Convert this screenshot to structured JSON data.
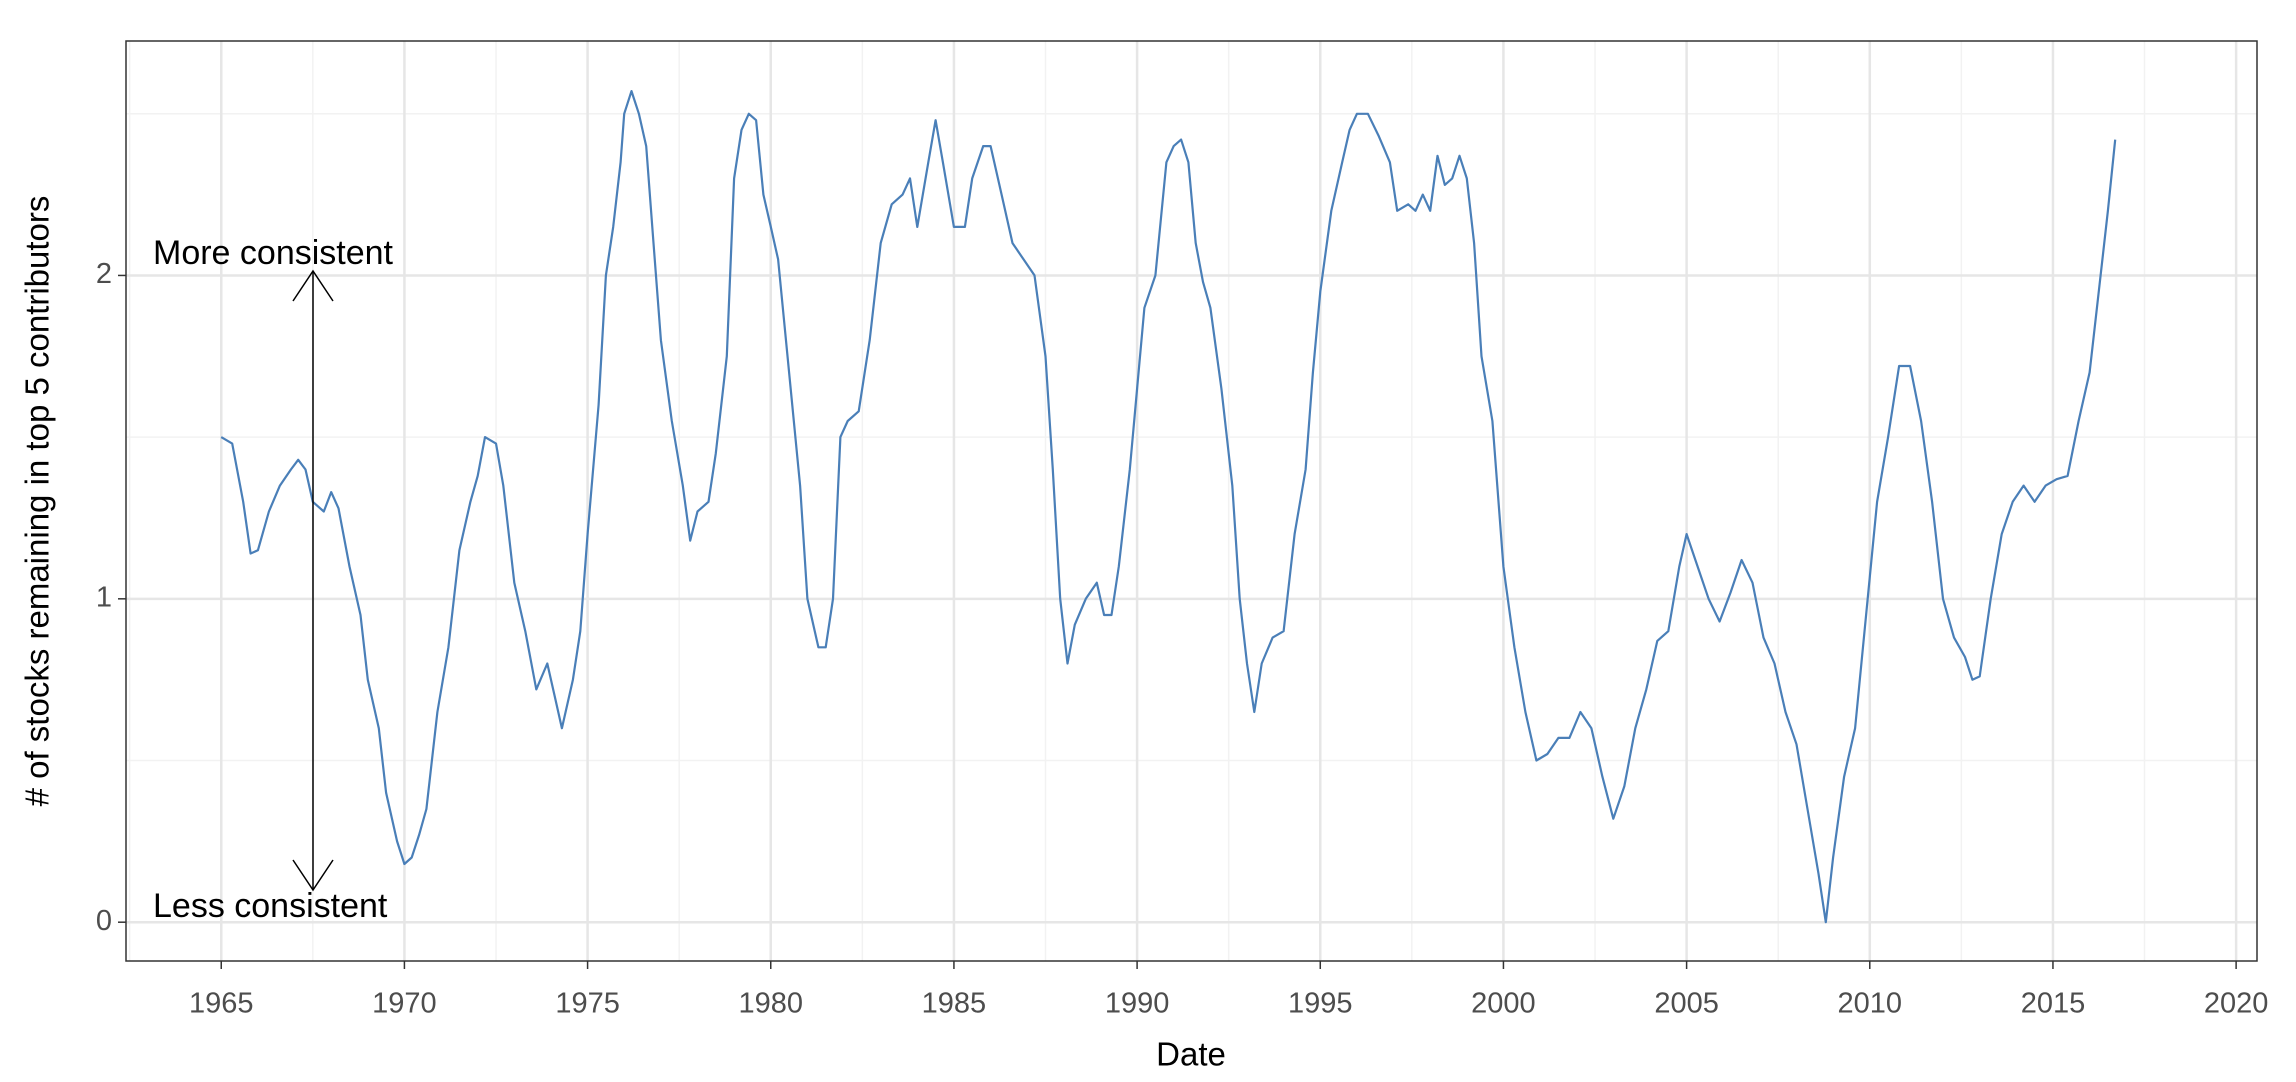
{
  "chart_data": {
    "type": "line",
    "x_label": "Date",
    "y_label": "# of stocks remaining in top 5 contributors",
    "annotations": [
      "More consistent",
      "Less consistent"
    ],
    "x": [
      1965.0,
      1965.3,
      1965.6,
      1965.8,
      1966.0,
      1966.3,
      1966.6,
      1966.9,
      1967.1,
      1967.3,
      1967.5,
      1967.8,
      1968.0,
      1968.2,
      1968.5,
      1968.8,
      1969.0,
      1969.3,
      1969.5,
      1969.8,
      1970.0,
      1970.2,
      1970.4,
      1970.6,
      1970.9,
      1971.2,
      1971.5,
      1971.8,
      1972.0,
      1972.2,
      1972.5,
      1972.7,
      1973.0,
      1973.3,
      1973.6,
      1973.9,
      1974.1,
      1974.3,
      1974.6,
      1974.8,
      1975.0,
      1975.3,
      1975.5,
      1975.7,
      1975.9,
      1976.0,
      1976.2,
      1976.4,
      1976.6,
      1976.8,
      1977.0,
      1977.3,
      1977.6,
      1977.8,
      1978.0,
      1978.3,
      1978.5,
      1978.8,
      1979.0,
      1979.2,
      1979.4,
      1979.6,
      1979.8,
      1980.0,
      1980.2,
      1980.5,
      1980.8,
      1981.0,
      1981.3,
      1981.5,
      1981.7,
      1981.9,
      1982.1,
      1982.4,
      1982.7,
      1983.0,
      1983.3,
      1983.6,
      1983.8,
      1984.0,
      1984.3,
      1984.5,
      1984.7,
      1985.0,
      1985.3,
      1985.5,
      1985.8,
      1986.0,
      1986.3,
      1986.6,
      1986.9,
      1987.2,
      1987.5,
      1987.7,
      1987.9,
      1988.1,
      1988.3,
      1988.6,
      1988.9,
      1989.1,
      1989.3,
      1989.5,
      1989.8,
      1990.0,
      1990.2,
      1990.5,
      1990.8,
      1991.0,
      1991.2,
      1991.4,
      1991.6,
      1991.8,
      1992.0,
      1992.3,
      1992.6,
      1992.8,
      1993.0,
      1993.2,
      1993.4,
      1993.7,
      1994.0,
      1994.3,
      1994.6,
      1994.8,
      1995.0,
      1995.3,
      1995.6,
      1995.8,
      1996.0,
      1996.3,
      1996.6,
      1996.9,
      1997.1,
      1997.4,
      1997.6,
      1997.8,
      1998.0,
      1998.2,
      1998.4,
      1998.6,
      1998.8,
      1999.0,
      1999.2,
      1999.4,
      1999.7,
      2000.0,
      2000.3,
      2000.6,
      2000.9,
      2001.2,
      2001.5,
      2001.8,
      2002.1,
      2002.4,
      2002.7,
      2003.0,
      2003.3,
      2003.6,
      2003.9,
      2004.2,
      2004.5,
      2004.8,
      2005.0,
      2005.3,
      2005.6,
      2005.9,
      2006.2,
      2006.5,
      2006.8,
      2007.1,
      2007.4,
      2007.7,
      2008.0,
      2008.3,
      2008.6,
      2008.8,
      2009.0,
      2009.3,
      2009.6,
      2009.9,
      2010.2,
      2010.5,
      2010.8,
      2011.1,
      2011.4,
      2011.7,
      2012.0,
      2012.3,
      2012.6,
      2012.8,
      2013.0,
      2013.3,
      2013.6,
      2013.9,
      2014.2,
      2014.5,
      2014.8,
      2015.1,
      2015.4,
      2015.7,
      2016.0,
      2016.3,
      2016.5,
      2016.7
    ],
    "series": [
      {
        "color": "#4a7fb8",
        "values": [
          1.5,
          1.48,
          1.3,
          1.14,
          1.15,
          1.27,
          1.35,
          1.4,
          1.43,
          1.4,
          1.3,
          1.27,
          1.33,
          1.28,
          1.1,
          0.95,
          0.75,
          0.6,
          0.4,
          0.25,
          0.18,
          0.2,
          0.27,
          0.35,
          0.65,
          0.85,
          1.15,
          1.3,
          1.38,
          1.5,
          1.48,
          1.35,
          1.05,
          0.9,
          0.72,
          0.8,
          0.7,
          0.6,
          0.75,
          0.9,
          1.2,
          1.6,
          2.0,
          2.15,
          2.35,
          2.5,
          2.57,
          2.5,
          2.4,
          2.1,
          1.8,
          1.55,
          1.35,
          1.18,
          1.27,
          1.3,
          1.45,
          1.75,
          2.3,
          2.45,
          2.5,
          2.48,
          2.25,
          2.15,
          2.05,
          1.7,
          1.35,
          1.0,
          0.85,
          0.85,
          1.0,
          1.5,
          1.55,
          1.58,
          1.8,
          2.1,
          2.22,
          2.25,
          2.3,
          2.15,
          2.35,
          2.48,
          2.35,
          2.15,
          2.15,
          2.3,
          2.4,
          2.4,
          2.25,
          2.1,
          2.05,
          2.0,
          1.75,
          1.4,
          1.0,
          0.8,
          0.92,
          1.0,
          1.05,
          0.95,
          0.95,
          1.1,
          1.4,
          1.65,
          1.9,
          2.0,
          2.35,
          2.4,
          2.42,
          2.35,
          2.1,
          1.98,
          1.9,
          1.65,
          1.35,
          1.0,
          0.8,
          0.65,
          0.8,
          0.88,
          0.9,
          1.2,
          1.4,
          1.7,
          1.95,
          2.2,
          2.35,
          2.45,
          2.5,
          2.5,
          2.43,
          2.35,
          2.2,
          2.22,
          2.2,
          2.25,
          2.2,
          2.37,
          2.28,
          2.3,
          2.37,
          2.3,
          2.1,
          1.75,
          1.55,
          1.1,
          0.85,
          0.65,
          0.5,
          0.52,
          0.57,
          0.57,
          0.65,
          0.6,
          0.45,
          0.32,
          0.42,
          0.6,
          0.72,
          0.87,
          0.9,
          1.1,
          1.2,
          1.1,
          1.0,
          0.93,
          1.02,
          1.12,
          1.05,
          0.88,
          0.8,
          0.65,
          0.55,
          0.35,
          0.15,
          0.0,
          0.2,
          0.45,
          0.6,
          0.95,
          1.3,
          1.5,
          1.72,
          1.72,
          1.55,
          1.3,
          1.0,
          0.88,
          0.82,
          0.75,
          0.76,
          1.0,
          1.2,
          1.3,
          1.35,
          1.3,
          1.35,
          1.37,
          1.38,
          1.55,
          1.7,
          2.0,
          2.2,
          2.42
        ]
      }
    ],
    "xlim": [
      1962.4,
      2020.57
    ],
    "xticks": [
      1965,
      1970,
      1975,
      1980,
      1985,
      1990,
      1995,
      2000,
      2005,
      2010,
      2015,
      2020
    ],
    "ylim": [
      -0.12,
      2.725
    ],
    "yticks": [
      0,
      1,
      2
    ],
    "grid": true
  }
}
